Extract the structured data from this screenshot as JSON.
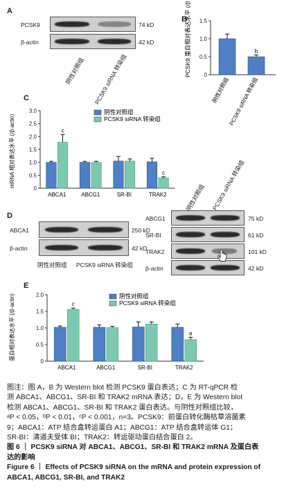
{
  "panels": {
    "A": {
      "letter": "A",
      "rows": [
        {
          "protein": "PCSK9",
          "mw": "74 kD"
        },
        {
          "protein": "β-actin",
          "mw": "42 kD"
        }
      ],
      "lanes": [
        "阴性对照组",
        "PCSK9 siRNA 转染组"
      ]
    },
    "B": {
      "letter": "B",
      "ylabel": "PCSK9 蛋白相对表达水平 (/β-actin)",
      "yticks": [
        "0",
        "0.5",
        "1.0",
        "1.5"
      ],
      "categories": [
        "阴性对照组",
        "PCSK9 siRNA 转染组"
      ]
    },
    "C": {
      "letter": "C",
      "ylabel": "mRNA 相对表达水平 (/β-actin)",
      "yticks": [
        "0",
        "0.5",
        "1.0",
        "1.5",
        "2.0",
        "2.5",
        "3.0"
      ],
      "categories": [
        "ABCA1",
        "ABCG1",
        "SR-BI",
        "TRAK2"
      ],
      "legend": [
        "阴性对照组",
        "PCSK9 siRNA 转染组"
      ]
    },
    "D": {
      "letter": "D",
      "left_rows": [
        {
          "protein": "ABCA1",
          "mw": "250 kD"
        },
        {
          "protein": "β-actin",
          "mw": "42 kD"
        }
      ],
      "left_lanes": [
        "阴性对照组",
        "PCSK9 siRNA 转染组"
      ],
      "right_rows": [
        {
          "protein": "ABCG1",
          "mw": "75 kD"
        },
        {
          "protein": "SR-BI",
          "mw": "61 kD"
        },
        {
          "protein": "TRAK2",
          "mw": "101 kD"
        },
        {
          "protein": "β-actin",
          "mw": "42 kD"
        }
      ],
      "right_lanes": [
        "阴性对照组",
        "PCSK9 siRNA 转染组"
      ]
    },
    "E": {
      "letter": "E",
      "ylabel": "蛋白相对表达水平 (/β-actin)",
      "yticks": [
        "0",
        "0.5",
        "1.0",
        "1.5",
        "2.0"
      ],
      "categories": [
        "ABCA1",
        "ABCG1",
        "SR-BI",
        "TRAK2"
      ],
      "legend": [
        "阴性对照组",
        "PCSK9 siRNA 转染组"
      ]
    }
  },
  "colors": {
    "control": "#4f7fc4",
    "sirna": "#7cc9b0",
    "axis": "#333333"
  },
  "chart_data": [
    {
      "panel": "B",
      "type": "bar",
      "categories": [
        "阴性对照组",
        "PCSK9 siRNA 转染组"
      ],
      "values": [
        1.0,
        0.5
      ],
      "errors": [
        0.13,
        0.05
      ],
      "annotations": [
        "",
        "b"
      ],
      "ylim": [
        0,
        1.5
      ],
      "ylabel": "PCSK9 蛋白相对表达水平 (/β-actin)"
    },
    {
      "panel": "C",
      "type": "bar",
      "categories": [
        "ABCA1",
        "ABCG1",
        "SR-BI",
        "TRAK2"
      ],
      "series": [
        {
          "name": "阴性对照组",
          "values": [
            1.0,
            1.0,
            1.05,
            1.02
          ],
          "errors": [
            0.04,
            0.04,
            0.18,
            0.14
          ]
        },
        {
          "name": "PCSK9 siRNA 转染组",
          "values": [
            1.78,
            1.0,
            1.05,
            0.4
          ],
          "errors": [
            0.3,
            0.04,
            0.08,
            0.04
          ]
        }
      ],
      "annotations": [
        "c",
        "",
        "",
        "c"
      ],
      "ylim": [
        0,
        3.0
      ],
      "ylabel": "mRNA 相对表达水平 (/β-actin)"
    },
    {
      "panel": "E",
      "type": "bar",
      "categories": [
        "ABCA1",
        "ABCG1",
        "SR-BI",
        "TRAK2"
      ],
      "series": [
        {
          "name": "阴性对照组",
          "values": [
            1.02,
            1.02,
            1.03,
            1.02
          ],
          "errors": [
            0.04,
            0.07,
            0.15,
            0.1
          ]
        },
        {
          "name": "PCSK9 siRNA 转染组",
          "values": [
            1.56,
            1.01,
            1.12,
            0.65
          ],
          "errors": [
            0.04,
            0.04,
            0.06,
            0.07
          ]
        }
      ],
      "annotations": [
        "c",
        "",
        "",
        "a"
      ],
      "ylim": [
        0,
        2.0
      ],
      "ylabel": "蛋白相对表达水平 (/β-actin)"
    }
  ],
  "caption": {
    "lines": [
      "图注：图 A，B 为 Western blot 检测 PCSK9 蛋白表达；C 为 RT-qPCR 检",
      "测 ABCA1、ABCG1、SR-BI 和 TRAK2 mRNA 表达；D，E 为 Western blot",
      "检测 ABCA1、ABCG1、SR-BI 和 TRAK2 蛋白表达。与阴性对照组比较，",
      "ᵃP < 0.05，ᵇP < 0.01，ᶜP < 0.001，n=3。PCSK9：前蛋白转化酶枯草溶菌素",
      "9；ABCA1：ATP 结合盒转运蛋白 A1；ABCG1：ATP 结合盒转运体 G1；",
      "SR-BI：清道夫受体 BI；TRAK2：转运驱动蛋白结合蛋白 2。"
    ],
    "title_cn": [
      "图 6 ｜ PCSK9 siRNA 对 ABCA1、ABCG1、SR-BI 和 TRAK2 mRNA 及蛋白表",
      "达的影响"
    ],
    "title_en": [
      "Figure 6 ｜ Effects of PCSK9 siRNA on the mRNA and protein expression of",
      "ABCA1, ABCG1, SR-BI, and TRAK2"
    ]
  }
}
